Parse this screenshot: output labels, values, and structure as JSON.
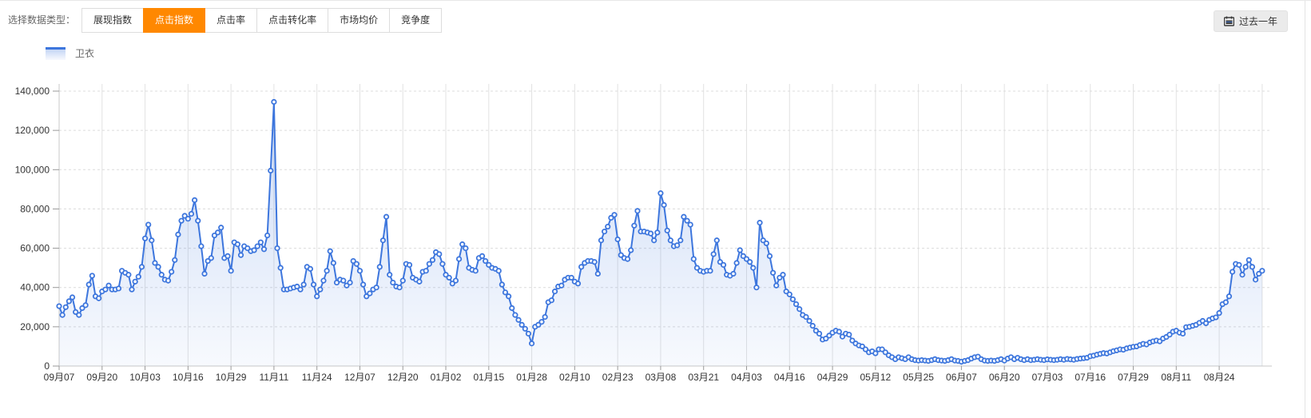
{
  "toolbar": {
    "label": "选择数据类型：",
    "active_color": "#ff8800",
    "tabs": [
      {
        "label": "展现指数",
        "active": false
      },
      {
        "label": "点击指数",
        "active": true
      },
      {
        "label": "点击率",
        "active": false
      },
      {
        "label": "点击转化率",
        "active": false
      },
      {
        "label": "市场均价",
        "active": false
      },
      {
        "label": "竞争度",
        "active": false
      }
    ],
    "period_button": {
      "icon": "calendar-icon",
      "label": "过去一年"
    }
  },
  "legend": {
    "items": [
      {
        "label": "卫衣",
        "color": "#3d76dd"
      }
    ]
  },
  "chart_data": {
    "type": "line",
    "title": "",
    "xlabel": "",
    "ylabel": "",
    "legend_position": "top-left",
    "grid": true,
    "ylim": [
      0,
      140000
    ],
    "y_tick_step": 20000,
    "y_tick_labels": [
      "0",
      "20,000",
      "40,000",
      "60,000",
      "80,000",
      "100,000",
      "120,000",
      "140,000"
    ],
    "x_tick_interval_days": 13,
    "x_tick_labels": [
      "09月07",
      "09月20",
      "10月03",
      "10月16",
      "10月29",
      "11月11",
      "11月24",
      "12月07",
      "12月20",
      "01月02",
      "01月15",
      "01月28",
      "02月10",
      "02月23",
      "03月08",
      "03月21",
      "04月03",
      "04月16",
      "04月29",
      "05月12",
      "05月25",
      "06月07",
      "06月20",
      "07月03",
      "07月16",
      "07月29",
      "08月11",
      "08月24"
    ],
    "series": [
      {
        "name": "卫衣",
        "color": "#3d76dd",
        "marker": "circle",
        "area": true,
        "values": [
          30500,
          26000,
          30000,
          33000,
          35000,
          27500,
          26000,
          29500,
          31000,
          41500,
          46000,
          35500,
          34500,
          38000,
          39000,
          41000,
          39000,
          39000,
          39500,
          48500,
          47500,
          46500,
          39000,
          43000,
          45500,
          50500,
          65000,
          72000,
          64000,
          52500,
          50500,
          46500,
          44000,
          43500,
          48000,
          54000,
          67000,
          74000,
          76500,
          75000,
          77500,
          84500,
          74000,
          61000,
          47000,
          53500,
          55000,
          66500,
          68000,
          70500,
          55000,
          56000,
          48500,
          63000,
          62000,
          56500,
          61000,
          60000,
          58500,
          59000,
          61000,
          63000,
          59500,
          66500,
          99500,
          134500,
          60000,
          50000,
          39000,
          39000,
          39500,
          40000,
          40500,
          39000,
          41500,
          50500,
          49500,
          41500,
          35500,
          39000,
          43500,
          48500,
          58500,
          52500,
          42500,
          44000,
          43500,
          41000,
          42500,
          53500,
          52000,
          48500,
          41500,
          35500,
          37000,
          39000,
          40000,
          50500,
          64000,
          76000,
          46500,
          42500,
          40500,
          40000,
          43500,
          52000,
          51500,
          45000,
          44000,
          43000,
          48000,
          48500,
          52000,
          54000,
          58000,
          57000,
          52000,
          46500,
          45000,
          42000,
          43500,
          54500,
          62000,
          60000,
          50000,
          49000,
          48500,
          55000,
          56000,
          53500,
          51500,
          50000,
          49500,
          48500,
          41500,
          37500,
          35500,
          29500,
          26000,
          23500,
          21000,
          19000,
          16500,
          11500,
          20000,
          21000,
          22500,
          25000,
          32500,
          33500,
          38000,
          40500,
          41000,
          44000,
          45000,
          45000,
          43000,
          42000,
          50500,
          52500,
          53500,
          53500,
          53000,
          47000,
          64000,
          68500,
          71000,
          75500,
          77000,
          64500,
          56500,
          55000,
          54500,
          59000,
          71500,
          79000,
          68500,
          68500,
          68000,
          67500,
          64000,
          68000,
          88000,
          82000,
          69000,
          64000,
          61000,
          61500,
          64000,
          76000,
          74000,
          72000,
          54500,
          50000,
          48500,
          48000,
          48500,
          48500,
          57000,
          64000,
          53000,
          51500,
          46500,
          46000,
          47000,
          52500,
          59000,
          56000,
          54500,
          53000,
          50000,
          40000,
          73000,
          64000,
          62500,
          56000,
          47500,
          41000,
          45000,
          46500,
          38000,
          36500,
          34000,
          31500,
          29000,
          26000,
          25000,
          23000,
          20500,
          18000,
          16500,
          13500,
          14000,
          15500,
          17000,
          18000,
          17500,
          15000,
          16500,
          16000,
          13000,
          11500,
          10500,
          10000,
          8500,
          7000,
          7500,
          6500,
          8500,
          8500,
          7000,
          5500,
          4500,
          3500,
          4500,
          4000,
          3500,
          4500,
          3500,
          3000,
          2800,
          3000,
          2800,
          2600,
          3000,
          3500,
          3000,
          2800,
          2600,
          3000,
          3500,
          2800,
          2600,
          2200,
          2600,
          3000,
          3800,
          4500,
          4800,
          3500,
          2800,
          2600,
          2800,
          2600,
          3000,
          3500,
          2800,
          3800,
          4500,
          3500,
          4200,
          3500,
          3000,
          3500,
          3000,
          3200,
          3500,
          3200,
          3000,
          3400,
          3200,
          3000,
          3200,
          3500,
          3200,
          3600,
          3400,
          3200,
          3600,
          3800,
          4000,
          4200,
          5000,
          5300,
          5800,
          6200,
          6600,
          6400,
          7000,
          7600,
          8000,
          8500,
          8300,
          9000,
          9400,
          9800,
          10000,
          10700,
          11300,
          11000,
          12000,
          12600,
          13000,
          12600,
          14000,
          14800,
          16000,
          17500,
          18000,
          17000,
          16500,
          19800,
          20000,
          20500,
          21000,
          22000,
          23000,
          21800,
          23500,
          24300,
          24800,
          27000,
          31500,
          32500,
          35500,
          48000,
          52000,
          51500,
          46500,
          50500,
          54000,
          50500,
          44000,
          47000,
          48500
        ]
      }
    ]
  }
}
